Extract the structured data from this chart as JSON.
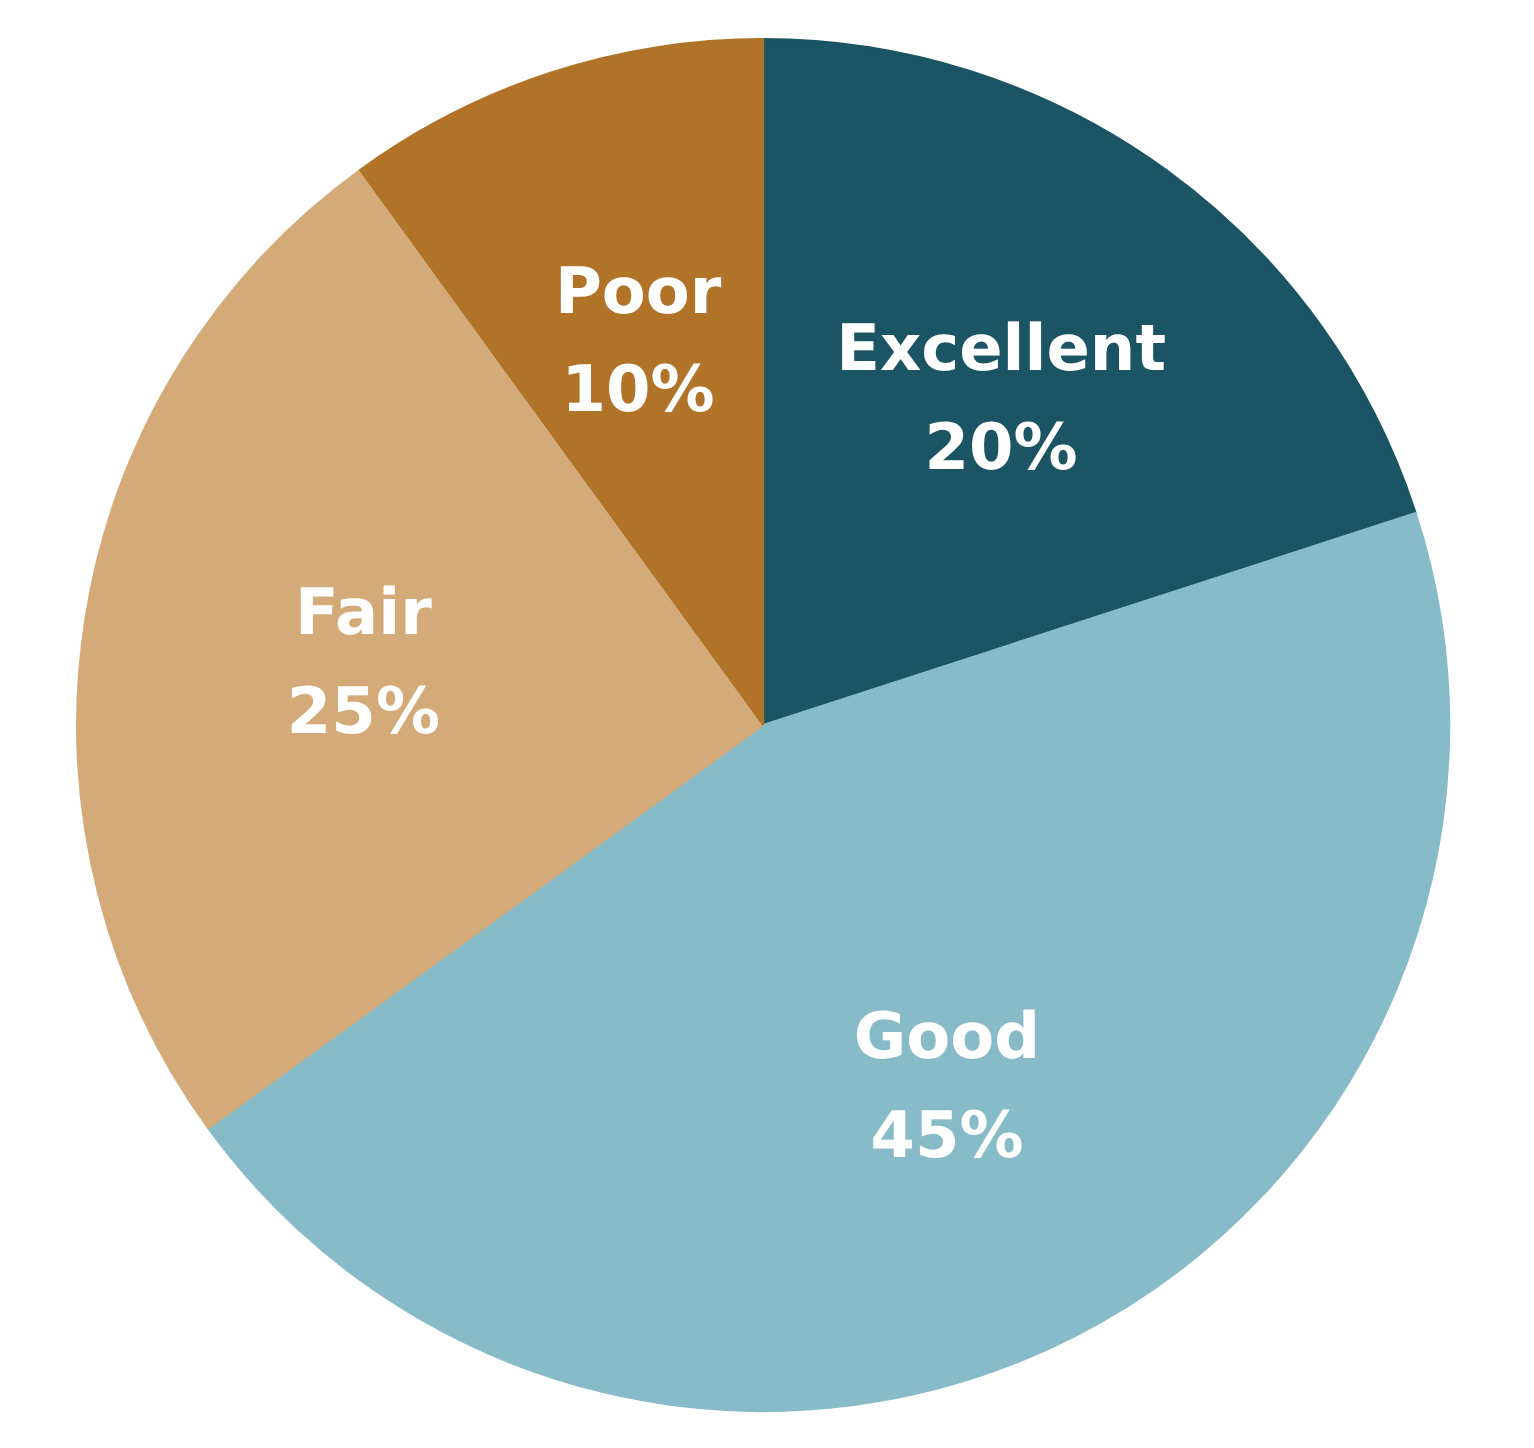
{
  "chart_data": {
    "type": "pie",
    "categories": [
      "Excellent",
      "Good",
      "Fair",
      "Poor"
    ],
    "values": [
      20,
      45,
      25,
      10
    ],
    "colors": [
      "#1b5463",
      "#87bbc8",
      "#d4aa78",
      "#b07328"
    ],
    "value_labels": [
      "20%",
      "45%",
      "25%",
      "10%"
    ]
  }
}
